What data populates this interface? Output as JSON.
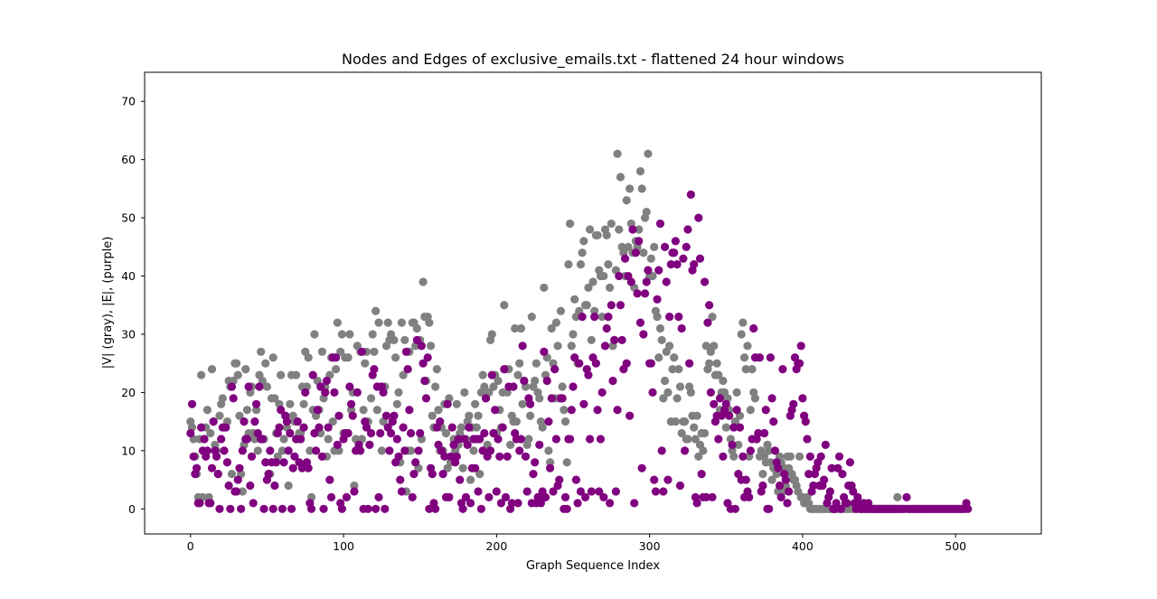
{
  "chart_data": {
    "type": "scatter",
    "title": "Nodes and Edges of exclusive_emails.txt - flattened 24 hour windows",
    "xlabel": "Graph Sequence Index",
    "ylabel": "|V| (gray), |E|, (purple)",
    "xlim": [
      -30,
      556
    ],
    "ylim": [
      -4.3,
      75
    ],
    "xticks": [
      0,
      100,
      200,
      300,
      400,
      500
    ],
    "yticks": [
      0,
      10,
      20,
      30,
      40,
      50,
      60,
      70
    ],
    "grid": false,
    "series": [
      {
        "color": "#808080",
        "values": [
          15,
          14,
          12,
          9,
          6,
          2,
          12,
          23,
          2,
          12,
          14,
          17,
          2,
          13,
          24,
          15,
          11,
          10,
          6,
          16,
          18,
          19,
          14,
          14,
          15,
          22,
          21,
          6,
          22,
          25,
          25,
          23,
          16,
          6,
          3,
          11,
          24,
          17,
          13,
          20,
          21,
          13,
          12,
          17,
          10,
          23,
          27,
          22,
          12,
          25,
          21,
          6,
          6,
          19,
          26,
          19,
          13,
          9,
          18,
          23,
          10,
          12,
          16,
          14,
          4,
          18,
          23,
          16,
          15,
          23,
          12,
          13,
          13,
          21,
          18,
          27,
          21,
          26,
          10,
          2,
          17,
          30,
          16,
          22,
          17,
          13,
          27,
          19,
          21,
          9,
          12,
          23,
          26,
          15,
          10,
          24,
          32,
          10,
          27,
          30,
          13,
          26,
          13,
          26,
          30,
          17,
          20,
          4,
          12,
          28,
          11,
          27,
          12,
          17,
          25,
          27,
          15,
          11,
          19,
          30,
          27,
          34,
          17,
          32,
          21,
          10,
          15,
          21,
          28,
          32,
          29,
          30,
          15,
          29,
          26,
          18,
          20,
          8,
          32,
          23,
          29,
          3,
          10,
          27,
          10,
          32,
          32,
          28,
          31,
          7,
          29,
          12,
          39,
          33,
          22,
          33,
          32,
          28,
          16,
          14,
          21,
          24,
          17,
          10,
          14,
          10,
          18,
          13,
          7,
          19,
          8,
          9,
          12,
          10,
          18,
          11,
          13,
          14,
          7,
          20,
          12,
          15,
          16,
          5,
          14,
          10,
          18,
          14,
          16,
          6,
          20,
          23,
          21,
          19,
          11,
          20,
          29,
          30,
          21,
          23,
          13,
          22,
          17,
          14,
          20,
          35,
          24,
          20,
          24,
          11,
          16,
          15,
          31,
          15,
          23,
          25,
          31,
          18,
          22,
          21,
          11,
          12,
          16,
          33,
          21,
          22,
          25,
          20,
          19,
          15,
          14,
          38,
          23,
          26,
          10,
          8,
          31,
          25,
          19,
          32,
          28,
          19,
          34,
          21,
          17,
          15,
          8,
          42,
          49,
          28,
          30,
          36,
          33,
          25,
          34,
          42,
          44,
          46,
          35,
          35,
          38,
          48,
          29,
          39,
          34,
          47,
          47,
          41,
          40,
          33,
          40,
          48,
          47,
          42,
          38,
          49,
          28,
          29,
          41,
          61,
          48,
          57,
          45,
          44,
          40,
          53,
          45,
          55,
          49,
          44,
          38,
          46,
          45,
          48,
          58,
          55,
          44,
          50,
          51,
          61,
          40,
          43,
          40,
          45,
          34,
          33,
          26,
          31,
          29,
          19,
          22,
          27,
          20,
          28,
          15,
          24,
          26,
          15,
          19,
          24,
          21,
          13,
          15,
          15,
          12,
          12,
          21,
          20,
          16,
          14,
          12,
          16,
          9,
          11,
          13,
          10,
          13,
          28,
          24,
          25,
          27,
          33,
          28,
          23,
          25,
          23,
          17,
          20,
          22,
          20,
          14,
          19,
          17,
          12,
          10,
          9,
          15,
          20,
          11,
          16,
          30,
          32,
          26,
          24,
          28,
          9,
          17,
          24,
          20,
          19,
          26,
          13,
          9,
          10,
          6,
          9,
          8,
          11,
          10,
          8,
          5,
          7,
          7,
          6,
          3,
          9,
          8,
          3,
          7,
          4,
          9,
          7,
          9,
          6,
          5,
          5,
          4,
          3,
          9,
          2,
          2,
          1,
          1,
          2,
          1,
          0,
          0,
          0,
          0,
          0,
          0,
          0,
          0,
          0,
          0,
          0,
          0,
          0,
          0,
          0,
          0,
          0,
          0,
          0,
          0,
          0,
          0,
          0,
          0,
          0,
          0,
          0,
          0,
          0,
          0,
          0,
          0,
          0,
          0,
          0,
          0,
          0,
          0,
          0,
          0,
          0,
          0,
          0,
          0,
          0,
          0,
          0,
          0,
          0,
          0,
          0,
          0,
          0,
          0,
          0,
          0,
          0,
          2
        ]
      },
      {
        "color": "#800080",
        "values": [
          13,
          18,
          9,
          6,
          7,
          1,
          1,
          14,
          10,
          12,
          9,
          10,
          1,
          1,
          7,
          15,
          10,
          9,
          6,
          0,
          12,
          14,
          10,
          14,
          8,
          4,
          0,
          21,
          19,
          3,
          3,
          5,
          7,
          0,
          10,
          15,
          12,
          12,
          21,
          4,
          9,
          1,
          15,
          18,
          13,
          21,
          12,
          12,
          0,
          8,
          5,
          6,
          10,
          8,
          0,
          4,
          8,
          13,
          14,
          17,
          0,
          8,
          16,
          15,
          10,
          13,
          0,
          7,
          9,
          12,
          15,
          8,
          12,
          7,
          14,
          20,
          8,
          7,
          1,
          0,
          23,
          13,
          10,
          17,
          14,
          21,
          9,
          0,
          20,
          22,
          14,
          5,
          2,
          26,
          20,
          26,
          11,
          16,
          1,
          0,
          12,
          13,
          2,
          13,
          21,
          18,
          16,
          3,
          10,
          20,
          11,
          10,
          27,
          0,
          15,
          14,
          0,
          11,
          13,
          23,
          24,
          0,
          21,
          2,
          13,
          21,
          20,
          0,
          16,
          14,
          10,
          13,
          15,
          16,
          8,
          12,
          9,
          5,
          3,
          14,
          10,
          27,
          24,
          17,
          13,
          2,
          6,
          8,
          29,
          10,
          13,
          28,
          25,
          22,
          19,
          26,
          0,
          7,
          6,
          1,
          0,
          14,
          11,
          15,
          10,
          6,
          9,
          2,
          18,
          2,
          9,
          14,
          11,
          8,
          9,
          12,
          5,
          1,
          0,
          12,
          2,
          11,
          14,
          1,
          7,
          12,
          7,
          12,
          3,
          12,
          0,
          10,
          13,
          19,
          9,
          2,
          10,
          23,
          13,
          17,
          3,
          12,
          9,
          1,
          14,
          24,
          2,
          9,
          21,
          0,
          1,
          21,
          13,
          12,
          1,
          10,
          12,
          28,
          22,
          9,
          3,
          19,
          18,
          1,
          6,
          8,
          1,
          2,
          11,
          1,
          3,
          27,
          2,
          22,
          15,
          7,
          19,
          3,
          24,
          12,
          4,
          5,
          19,
          19,
          0,
          2,
          0,
          12,
          12,
          17,
          21,
          26,
          5,
          1,
          25,
          3,
          33,
          18,
          2,
          24,
          23,
          12,
          3,
          26,
          33,
          25,
          17,
          3,
          12,
          20,
          2,
          28,
          31,
          33,
          1,
          35,
          22,
          29,
          3,
          17,
          40,
          35,
          29,
          24,
          43,
          25,
          40,
          16,
          39,
          48,
          1,
          44,
          37,
          46,
          32,
          7,
          30,
          37,
          39,
          41,
          25,
          25,
          20,
          5,
          3,
          36,
          41,
          49,
          10,
          3,
          45,
          39,
          5,
          33,
          42,
          44,
          44,
          46,
          42,
          33,
          4,
          31,
          43,
          10,
          45,
          48,
          25,
          54,
          41,
          42,
          2,
          1,
          50,
          43,
          6,
          2,
          39,
          2,
          32,
          35,
          20,
          2,
          18,
          15,
          16,
          12,
          19,
          16,
          9,
          17,
          18,
          1,
          16,
          0,
          11,
          14,
          0,
          17,
          6,
          14,
          5,
          9,
          2,
          5,
          3,
          2,
          10,
          12,
          31,
          26,
          12,
          13,
          26,
          3,
          4,
          13,
          17,
          0,
          0,
          26,
          19,
          15,
          10,
          8,
          7,
          4,
          2,
          24,
          6,
          5,
          1,
          3,
          16,
          17,
          18,
          26,
          24,
          25,
          25,
          28,
          19,
          16,
          15,
          12,
          6,
          9,
          3,
          4,
          6,
          7,
          8,
          4,
          9,
          4,
          5,
          11,
          1,
          2,
          3,
          7,
          0,
          0,
          1,
          7,
          9,
          0,
          6,
          2,
          1,
          1,
          4,
          8,
          4,
          3,
          1,
          0,
          2,
          1,
          0,
          0,
          1,
          0,
          0,
          1,
          0,
          0,
          0,
          0,
          0,
          0,
          0,
          0,
          0,
          0,
          0,
          0,
          0,
          0,
          0,
          0,
          0,
          0,
          0,
          0,
          0,
          0,
          0,
          0,
          2,
          0,
          0,
          0,
          0,
          0,
          0,
          0,
          0,
          0,
          0,
          0,
          0,
          0,
          0,
          0,
          0,
          0,
          0,
          0,
          0,
          0,
          0,
          0,
          0,
          0,
          0,
          0,
          0,
          0,
          0,
          0,
          0,
          0,
          0,
          0,
          0,
          0,
          0,
          1,
          0
        ]
      }
    ]
  }
}
